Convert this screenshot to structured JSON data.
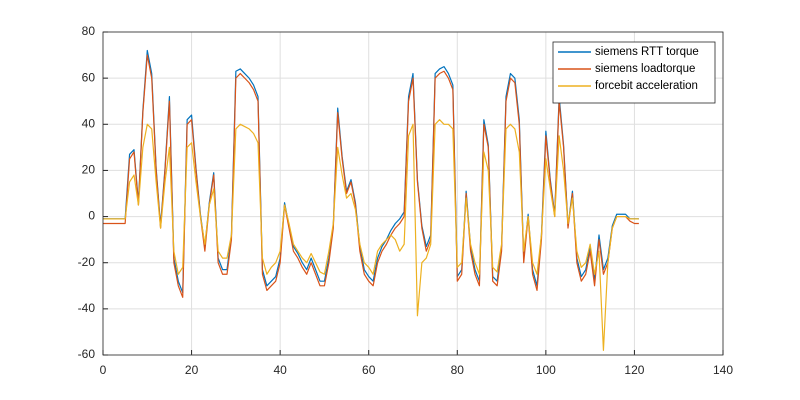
{
  "chart_data": {
    "type": "line",
    "x": [
      0,
      1,
      2,
      3,
      4,
      5,
      6,
      7,
      8,
      9,
      10,
      11,
      12,
      13,
      14,
      15,
      16,
      17,
      18,
      19,
      20,
      21,
      22,
      23,
      24,
      25,
      26,
      27,
      28,
      29,
      30,
      31,
      32,
      33,
      34,
      35,
      36,
      37,
      38,
      39,
      40,
      41,
      42,
      43,
      44,
      45,
      46,
      47,
      48,
      49,
      50,
      51,
      52,
      53,
      54,
      55,
      56,
      57,
      58,
      59,
      60,
      61,
      62,
      63,
      64,
      65,
      66,
      67,
      68,
      69,
      70,
      71,
      72,
      73,
      74,
      75,
      76,
      77,
      78,
      79,
      80,
      81,
      82,
      83,
      84,
      85,
      86,
      87,
      88,
      89,
      90,
      91,
      92,
      93,
      94,
      95,
      96,
      97,
      98,
      99,
      100,
      101,
      102,
      103,
      104,
      105,
      106,
      107,
      108,
      109,
      110,
      111,
      112,
      113,
      114,
      115,
      116,
      117,
      118,
      119,
      120,
      121
    ],
    "series": [
      {
        "name": "siemens RTT torque",
        "color": "#0072bd",
        "values": [
          -1,
          -1,
          -1,
          -1,
          -1,
          -1,
          27,
          29,
          6,
          46,
          72,
          62,
          21,
          -4,
          21,
          52,
          -18,
          -28,
          -33,
          42,
          44,
          21,
          1,
          -13,
          6,
          19,
          -18,
          -23,
          -23,
          -8,
          63,
          64,
          62,
          60,
          57,
          52,
          -23,
          -30,
          -28,
          -26,
          -18,
          6,
          -4,
          -13,
          -16,
          -20,
          -23,
          -18,
          -23,
          -28,
          -28,
          -18,
          -4,
          47,
          26,
          11,
          16,
          6,
          -13,
          -23,
          -26,
          -28,
          -18,
          -13,
          -10,
          -6,
          -3,
          -1,
          2,
          52,
          62,
          16,
          -4,
          -13,
          -8,
          62,
          64,
          65,
          62,
          57,
          -26,
          -23,
          11,
          -13,
          -23,
          -28,
          42,
          31,
          -26,
          -28,
          -13,
          52,
          62,
          60,
          42,
          -18,
          1,
          -23,
          -30,
          -8,
          37,
          16,
          1,
          52,
          31,
          -4,
          11,
          -18,
          -26,
          -23,
          -13,
          -28,
          -8,
          -23,
          -18,
          -4,
          1,
          1,
          1,
          -1,
          -1,
          -1
        ]
      },
      {
        "name": "siemens loadtorque",
        "color": "#d95319",
        "values": [
          -3,
          -3,
          -3,
          -3,
          -3,
          -3,
          25,
          28,
          5,
          45,
          70,
          60,
          20,
          -5,
          20,
          50,
          -20,
          -30,
          -35,
          40,
          42,
          20,
          0,
          -15,
          5,
          18,
          -20,
          -25,
          -25,
          -10,
          60,
          62,
          60,
          58,
          55,
          50,
          -25,
          -32,
          -30,
          -28,
          -20,
          5,
          -5,
          -15,
          -18,
          -22,
          -25,
          -20,
          -25,
          -30,
          -30,
          -20,
          -5,
          45,
          25,
          10,
          15,
          5,
          -15,
          -25,
          -28,
          -30,
          -20,
          -15,
          -12,
          -8,
          -5,
          -3,
          0,
          50,
          60,
          15,
          -5,
          -15,
          -10,
          60,
          62,
          63,
          60,
          55,
          -28,
          -25,
          10,
          -15,
          -25,
          -30,
          40,
          30,
          -28,
          -30,
          -15,
          50,
          60,
          58,
          40,
          -20,
          0,
          -25,
          -32,
          -10,
          35,
          15,
          0,
          50,
          30,
          -5,
          10,
          -20,
          -28,
          -25,
          -15,
          -30,
          -10,
          -25,
          -20,
          -5,
          0,
          0,
          0,
          -2,
          -3,
          -3
        ]
      },
      {
        "name": "forcebit acceleration",
        "color": "#edb120",
        "values": [
          -1,
          -1,
          -1,
          -1,
          -1,
          -1,
          15,
          18,
          5,
          30,
          40,
          38,
          15,
          -5,
          15,
          30,
          -15,
          -25,
          -22,
          30,
          32,
          15,
          0,
          -12,
          5,
          12,
          -15,
          -18,
          -18,
          -8,
          38,
          40,
          39,
          38,
          36,
          32,
          -18,
          -25,
          -22,
          -20,
          -15,
          5,
          -3,
          -12,
          -15,
          -18,
          -20,
          -16,
          -20,
          -24,
          -25,
          -15,
          -3,
          30,
          18,
          8,
          10,
          3,
          -12,
          -20,
          -22,
          -25,
          -15,
          -12,
          -10,
          -8,
          -10,
          -15,
          -12,
          35,
          40,
          -43,
          -20,
          -18,
          -12,
          40,
          42,
          40,
          40,
          38,
          -22,
          -20,
          8,
          -12,
          -20,
          -25,
          28,
          20,
          -22,
          -24,
          -12,
          38,
          40,
          38,
          28,
          -15,
          0,
          -20,
          -25,
          -8,
          25,
          12,
          0,
          35,
          20,
          -3,
          8,
          -15,
          -22,
          -20,
          -12,
          -25,
          -15,
          -58,
          -20,
          -5,
          0,
          0,
          0,
          -1,
          -1,
          -1
        ]
      }
    ],
    "xlim": [
      0,
      140
    ],
    "xticks": [
      0,
      20,
      40,
      60,
      80,
      100,
      120,
      140
    ],
    "ylim": [
      -60,
      80
    ],
    "yticks": [
      -60,
      -40,
      -20,
      0,
      20,
      40,
      60,
      80
    ],
    "grid": true,
    "legend": "northeast"
  }
}
